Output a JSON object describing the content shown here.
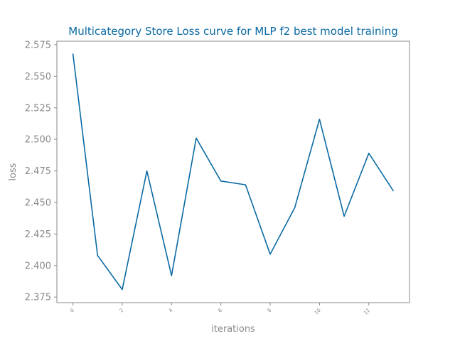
{
  "colors": {
    "line": "#0a6aa4",
    "title": "#0a6aa4",
    "axis_text": "#8a8a8a",
    "spine": "#8a8a8a"
  },
  "chart_data": {
    "type": "line",
    "title": "Multicategory Store Loss curve for MLP f2 best model training",
    "xlabel": "iterations",
    "ylabel": "loss",
    "xlim": [
      -0.65,
      13.65
    ],
    "ylim": [
      2.3706,
      2.5778
    ],
    "x_ticks": [
      0,
      2,
      4,
      6,
      8,
      10,
      12
    ],
    "y_ticks": [
      2.375,
      2.4,
      2.425,
      2.45,
      2.475,
      2.5,
      2.525,
      2.55,
      2.575
    ],
    "y_tick_labels": [
      "2.375",
      "2.400",
      "2.425",
      "2.450",
      "2.475",
      "2.500",
      "2.525",
      "2.550",
      "2.575"
    ],
    "grid": false,
    "series": [
      {
        "x": [
          0,
          1,
          2,
          3,
          4,
          5,
          6,
          7,
          8,
          9,
          10,
          11,
          12,
          13
        ],
        "values": [
          2.568,
          2.408,
          2.381,
          2.475,
          2.392,
          2.501,
          2.467,
          2.464,
          2.409,
          2.446,
          2.516,
          2.439,
          2.489,
          2.459
        ]
      }
    ]
  }
}
